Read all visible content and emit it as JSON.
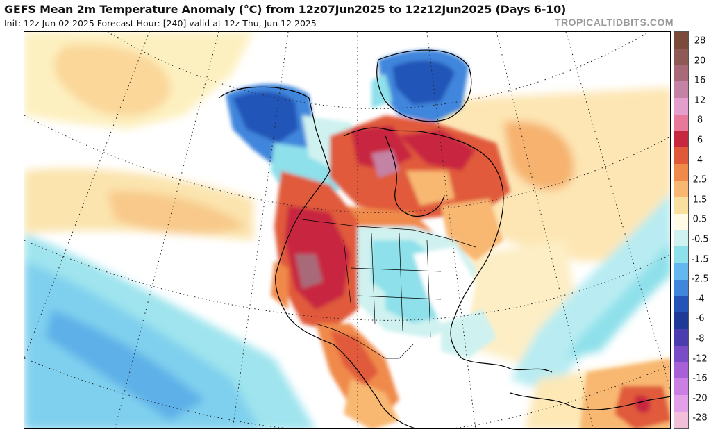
{
  "header": {
    "title": "GEFS Mean 2m Temperature Anomaly (°C) from 12z07Jun2025 to 12z12Jun2025 (Days 6-10)",
    "subtitle": "Init: 12z Jun 02 2025   Forecast Hour: [240]   valid at 12z Thu, Jun 12 2025",
    "site": "TROPICALTIDBITS.COM"
  },
  "colorbar": {
    "labels": [
      "28",
      "20",
      "16",
      "12",
      "8",
      "6",
      "4",
      "2.5",
      "1.5",
      "0.5",
      "-0.5",
      "-1.5",
      "-2.5",
      "-4",
      "-6",
      "-8",
      "-12",
      "-16",
      "-20",
      "-28"
    ],
    "colors": [
      "#7a4a3a",
      "#8e5a55",
      "#a86a78",
      "#c482a4",
      "#e49ecb",
      "#e8799a",
      "#c8283f",
      "#e05a3a",
      "#f08a4b",
      "#f8b872",
      "#fae09e",
      "#fffbe6",
      "#cff2f0",
      "#8ee0ea",
      "#62b8ef",
      "#3f86dc",
      "#2454b8",
      "#1d3b96",
      "#4b3cb0",
      "#7a4cc8",
      "#a860d8",
      "#cc7fe2",
      "#e2a0e8",
      "#f2bfd8"
    ]
  },
  "map": {
    "regions": [
      {
        "name": "western-us-warm-anomaly",
        "level": 6
      },
      {
        "name": "northern-canada-warm-anomaly",
        "level": 4
      },
      {
        "name": "alaska-cold-anomaly",
        "level": -4
      },
      {
        "name": "greenland-cold-anomaly",
        "level": -4
      },
      {
        "name": "central-us-cool-anomaly",
        "level": -1.5
      },
      {
        "name": "eastern-pacific-cool-anomaly",
        "level": -2.5
      },
      {
        "name": "mexico-warm-anomaly",
        "level": 4
      },
      {
        "name": "south-america-warm-anomaly",
        "level": 6
      }
    ]
  }
}
